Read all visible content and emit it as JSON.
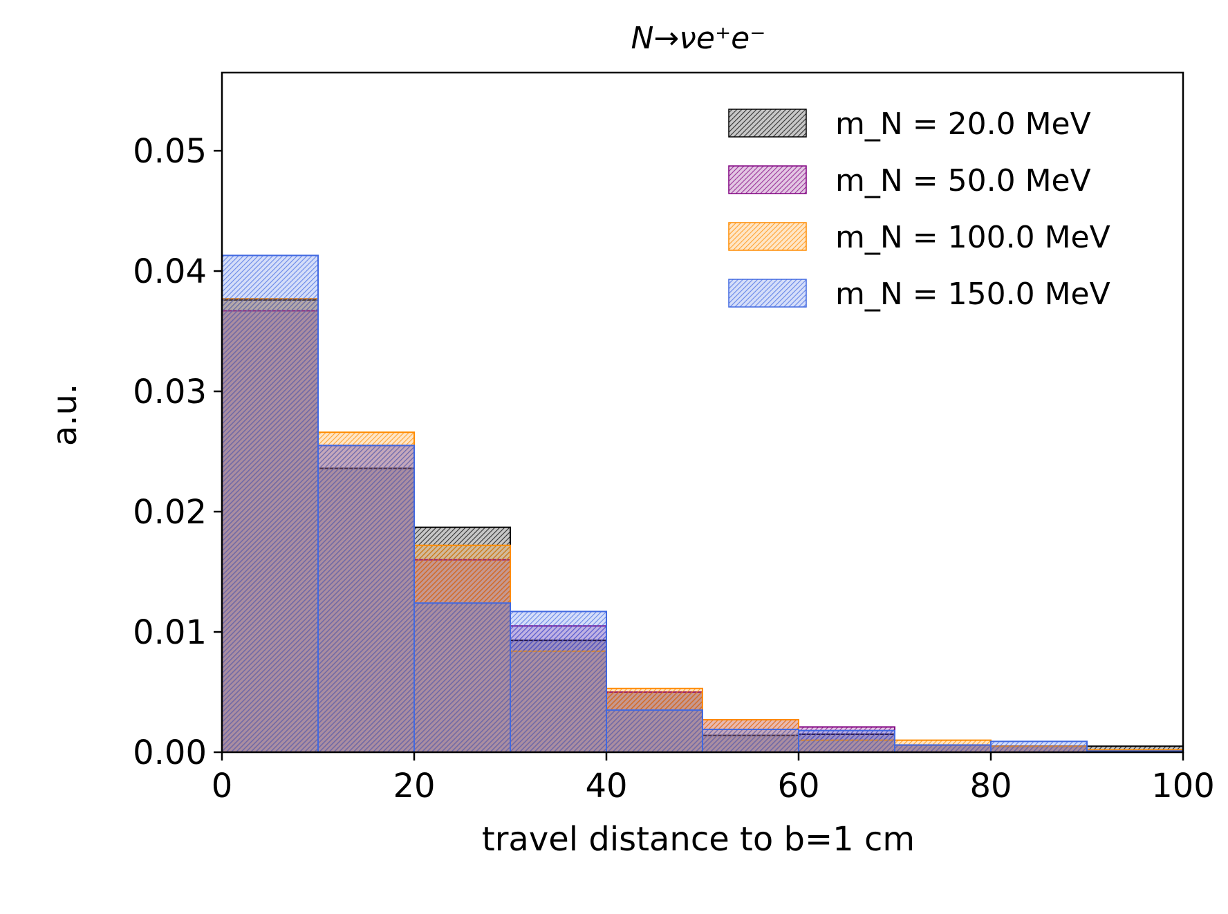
{
  "chart_data": {
    "type": "bar",
    "title": "N→νe⁺e⁻",
    "xlabel": "travel distance to b=1 cm",
    "ylabel": "a.u.",
    "xlim": [
      0,
      100
    ],
    "ylim": [
      0,
      0.0565
    ],
    "xticks": [
      "0",
      "20",
      "40",
      "60",
      "80",
      "100"
    ],
    "yticks": [
      "0.00",
      "0.01",
      "0.02",
      "0.03",
      "0.04",
      "0.05"
    ],
    "bin_edges": [
      0,
      10,
      20,
      30,
      40,
      50,
      60,
      70,
      80,
      90,
      100
    ],
    "histtype": "stepfilled, hatched, overlaid",
    "grid": false,
    "legend_position": "top-right",
    "series": [
      {
        "name": "m_N = 20.0 MeV",
        "color": "#000000",
        "values": [
          0.0376,
          0.0236,
          0.0187,
          0.0093,
          0.005,
          0.0014,
          0.0015,
          0.0006,
          0.0005,
          0.0005
        ]
      },
      {
        "name": "m_N = 50.0 MeV",
        "color": "#800080",
        "values": [
          0.0367,
          0.0255,
          0.016,
          0.0105,
          0.005,
          0.0027,
          0.0021,
          0.0006,
          0.0005,
          0.0002
        ]
      },
      {
        "name": "m_N = 100.0 MeV",
        "color": "#ff8c00",
        "values": [
          0.0377,
          0.0266,
          0.0172,
          0.0084,
          0.0053,
          0.0027,
          0.001,
          0.001,
          0.0005,
          0.0002
        ]
      },
      {
        "name": "m_N = 150.0 MeV",
        "color": "#4169e1",
        "values": [
          0.0413,
          0.0255,
          0.0124,
          0.0117,
          0.0035,
          0.0019,
          0.0018,
          0.0006,
          0.0009,
          0.0001
        ]
      }
    ]
  }
}
